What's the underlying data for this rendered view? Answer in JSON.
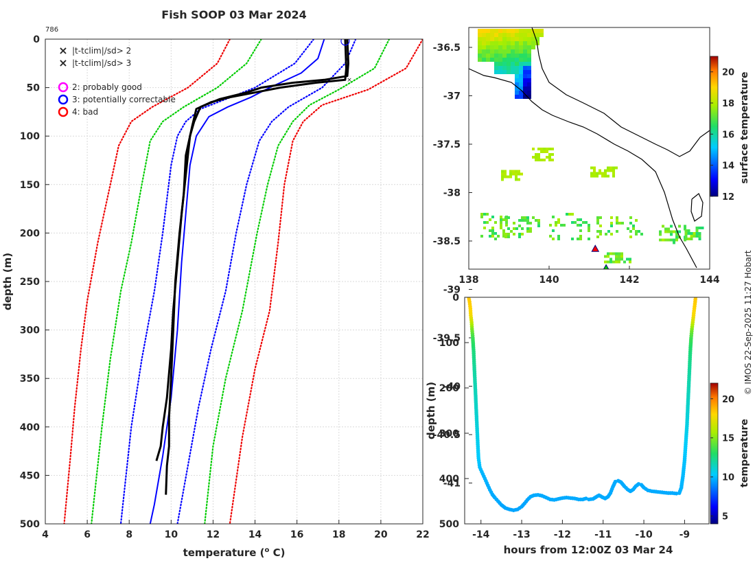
{
  "title": "Fish SOOP 03 Mar 2024",
  "cast_id": "786",
  "credit": "© IMOS 22-Sep-2025 11:27 Hobart",
  "colors": {
    "accent": "#0000ff",
    "red": "#ff0000",
    "green": "#00cc00",
    "magenta": "#ff00ff",
    "black": "#000000"
  },
  "chart_data": [
    {
      "type": "line",
      "name": "temperature profile",
      "xlabel_main": "temperature (",
      "xlabel_sup": "o",
      "xlabel_end": " C)",
      "ylabel": "depth (m)",
      "xlim": [
        4,
        22
      ],
      "ylim": [
        0,
        500
      ],
      "y_reversed": true,
      "xticks": [
        "4",
        "6",
        "8",
        "10",
        "12",
        "14",
        "16",
        "18",
        "20",
        "22"
      ],
      "yticks": [
        "0",
        "50",
        "100",
        "150",
        "200",
        "250",
        "300",
        "350",
        "400",
        "450",
        "500"
      ],
      "grid": true,
      "legend": {
        "placement": "top-left",
        "entries": [
          {
            "marker": "x",
            "color": "#00dd00",
            "label": "|t-tclim|/sd> 2"
          },
          {
            "marker": "x",
            "color": "#ee0000",
            "label": "|t-tclim|/sd> 3"
          },
          {
            "marker": "o",
            "color": "#ff00ff",
            "label": "2: probably good"
          },
          {
            "marker": "o",
            "color": "#0000ff",
            "label": "3: potentially correctable"
          },
          {
            "marker": "o",
            "color": "#ff0000",
            "label": "4: bad"
          }
        ]
      },
      "series": [
        {
          "name": "climatology mean",
          "style": "solid",
          "color": "#0000ff",
          "points": [
            [
              17.3,
              0
            ],
            [
              17.0,
              20
            ],
            [
              16.2,
              35
            ],
            [
              14.7,
              50
            ],
            [
              13.8,
              60
            ],
            [
              12.7,
              70
            ],
            [
              11.8,
              80
            ],
            [
              11.2,
              100
            ],
            [
              10.9,
              130
            ],
            [
              10.7,
              180
            ],
            [
              10.5,
              230
            ],
            [
              10.3,
              300
            ],
            [
              10.0,
              370
            ],
            [
              9.6,
              430
            ],
            [
              9.2,
              480
            ],
            [
              9.0,
              500
            ]
          ]
        },
        {
          "name": "-1 sd",
          "style": "dotted",
          "color": "#0000ff",
          "points": [
            [
              16.8,
              0
            ],
            [
              15.9,
              25
            ],
            [
              14.0,
              50
            ],
            [
              12.6,
              62
            ],
            [
              11.4,
              72
            ],
            [
              10.7,
              85
            ],
            [
              10.3,
              100
            ],
            [
              10.0,
              130
            ],
            [
              9.6,
              200
            ],
            [
              9.2,
              260
            ],
            [
              8.6,
              330
            ],
            [
              8.1,
              400
            ],
            [
              7.8,
              460
            ],
            [
              7.6,
              500
            ]
          ]
        },
        {
          "name": "+1 sd",
          "style": "dotted",
          "color": "#0000ff",
          "points": [
            [
              18.8,
              0
            ],
            [
              18.3,
              25
            ],
            [
              17.2,
              50
            ],
            [
              15.6,
              70
            ],
            [
              14.8,
              85
            ],
            [
              14.2,
              105
            ],
            [
              13.6,
              150
            ],
            [
              13.1,
              200
            ],
            [
              12.6,
              260
            ],
            [
              11.9,
              320
            ],
            [
              11.3,
              380
            ],
            [
              10.8,
              440
            ],
            [
              10.3,
              500
            ]
          ]
        },
        {
          "name": "-2 sd",
          "style": "dotted",
          "color": "#00cc00",
          "points": [
            [
              14.3,
              0
            ],
            [
              13.6,
              25
            ],
            [
              12.2,
              50
            ],
            [
              10.6,
              70
            ],
            [
              9.6,
              85
            ],
            [
              9.0,
              105
            ],
            [
              8.6,
              150
            ],
            [
              8.1,
              210
            ],
            [
              7.6,
              260
            ],
            [
              7.1,
              330
            ],
            [
              6.7,
              400
            ],
            [
              6.4,
              460
            ],
            [
              6.2,
              500
            ]
          ]
        },
        {
          "name": "+2 sd",
          "style": "dotted",
          "color": "#00cc00",
          "points": [
            [
              20.4,
              0
            ],
            [
              19.7,
              30
            ],
            [
              18.0,
              52
            ],
            [
              16.6,
              68
            ],
            [
              15.8,
              85
            ],
            [
              15.1,
              110
            ],
            [
              14.6,
              150
            ],
            [
              14.1,
              200
            ],
            [
              13.4,
              280
            ],
            [
              12.6,
              350
            ],
            [
              12.0,
              420
            ],
            [
              11.6,
              500
            ]
          ]
        },
        {
          "name": "-3 sd",
          "style": "dotted",
          "color": "#ee0000",
          "points": [
            [
              12.8,
              0
            ],
            [
              12.2,
              25
            ],
            [
              10.8,
              50
            ],
            [
              9.1,
              70
            ],
            [
              8.1,
              85
            ],
            [
              7.5,
              110
            ],
            [
              7.0,
              160
            ],
            [
              6.5,
              210
            ],
            [
              6.0,
              270
            ],
            [
              5.7,
              320
            ],
            [
              5.4,
              380
            ],
            [
              5.2,
              430
            ],
            [
              4.9,
              500
            ]
          ]
        },
        {
          "name": "+3 sd",
          "style": "dotted",
          "color": "#ee0000",
          "points": [
            [
              22.0,
              0
            ],
            [
              21.2,
              30
            ],
            [
              19.4,
              52
            ],
            [
              17.2,
              68
            ],
            [
              16.3,
              85
            ],
            [
              15.8,
              105
            ],
            [
              15.4,
              150
            ],
            [
              15.1,
              210
            ],
            [
              14.7,
              280
            ],
            [
              14.0,
              340
            ],
            [
              13.4,
              410
            ],
            [
              12.8,
              500
            ]
          ]
        },
        {
          "name": "cast 1",
          "style": "solid",
          "color": "#000000",
          "points": [
            [
              18.4,
              0
            ],
            [
              18.45,
              25
            ],
            [
              18.4,
              38
            ],
            [
              17.3,
              42
            ],
            [
              15.8,
              45
            ],
            [
              14.3,
              50
            ],
            [
              13.6,
              55
            ],
            [
              12.3,
              62
            ],
            [
              11.4,
              70
            ],
            [
              11.1,
              85
            ],
            [
              10.9,
              100
            ],
            [
              10.7,
              140
            ],
            [
              10.5,
              180
            ],
            [
              10.3,
              230
            ],
            [
              10.1,
              280
            ],
            [
              10.0,
              320
            ],
            [
              9.8,
              370
            ],
            [
              9.6,
              400
            ],
            [
              9.5,
              420
            ],
            [
              9.3,
              435
            ]
          ]
        },
        {
          "name": "cast 2",
          "style": "solid",
          "color": "#000000",
          "points": [
            [
              18.3,
              0
            ],
            [
              18.35,
              30
            ],
            [
              18.3,
              42
            ],
            [
              16.9,
              45
            ],
            [
              15.2,
              50
            ],
            [
              14.0,
              55
            ],
            [
              12.8,
              60
            ],
            [
              11.9,
              65
            ],
            [
              11.2,
              72
            ],
            [
              11.0,
              90
            ],
            [
              10.7,
              120
            ],
            [
              10.6,
              160
            ],
            [
              10.4,
              200
            ],
            [
              10.2,
              250
            ],
            [
              10.1,
              300
            ],
            [
              10.0,
              350
            ],
            [
              9.9,
              390
            ],
            [
              9.9,
              420
            ],
            [
              9.8,
              440
            ],
            [
              9.75,
              470
            ]
          ]
        }
      ],
      "qc_marker": {
        "x": 18.3,
        "y": 2,
        "label": "3: potentially correctable"
      }
    },
    {
      "type": "heatmap",
      "name": "surface temperature map",
      "xlim": [
        138,
        144.3
      ],
      "ylim": [
        -41.1,
        -36.1
      ],
      "xticks": [
        "138",
        "140",
        "142",
        "144"
      ],
      "yticks": [
        "-36.5",
        "-37",
        "-37.5",
        "-38",
        "-38.5",
        "-39",
        "-39.5",
        "-40",
        "-40.5",
        "-41"
      ],
      "colorbar": {
        "label": "surface temperature",
        "range": [
          12,
          21
        ],
        "ticks": [
          "12",
          "14",
          "16",
          "18",
          "20"
        ]
      },
      "markers": [
        {
          "lon": 141.15,
          "lat": -38.58,
          "shape": "triangle",
          "color": "#ff0000"
        },
        {
          "lon": 141.42,
          "lat": -38.78,
          "shape": "triangle",
          "color": "#00cc00"
        }
      ]
    },
    {
      "type": "scatter",
      "name": "depth vs time",
      "xlabel": "hours from 12:00Z 03 Mar 24",
      "ylabel": "depth (m)",
      "xlim": [
        -14.4,
        -8.4
      ],
      "ylim": [
        0,
        500
      ],
      "y_reversed": true,
      "xticks": [
        "-14",
        "-13",
        "-12",
        "-11",
        "-10",
        "-9"
      ],
      "yticks": [
        "0",
        "100",
        "200",
        "300",
        "400",
        "500"
      ],
      "colorbar": {
        "label": "temperature",
        "range": [
          4,
          22
        ],
        "ticks": [
          "5",
          "10",
          "15",
          "20"
        ]
      },
      "points": [
        [
          -14.3,
          0,
          18.4
        ],
        [
          -14.28,
          10,
          18.3
        ],
        [
          -14.26,
          25,
          18.1
        ],
        [
          -14.25,
          40,
          17.8
        ],
        [
          -14.23,
          55,
          16.5
        ],
        [
          -14.22,
          70,
          14.8
        ],
        [
          -14.2,
          90,
          13.5
        ],
        [
          -14.18,
          120,
          12.6
        ],
        [
          -14.16,
          160,
          12.0
        ],
        [
          -14.14,
          200,
          11.6
        ],
        [
          -14.12,
          240,
          11.3
        ],
        [
          -14.1,
          280,
          11.0
        ],
        [
          -14.08,
          320,
          10.6
        ],
        [
          -14.06,
          355,
          10.3
        ],
        [
          -14.03,
          375,
          10.0
        ],
        [
          -13.98,
          385,
          9.9
        ],
        [
          -13.93,
          395,
          9.8
        ],
        [
          -13.88,
          405,
          9.8
        ],
        [
          -13.83,
          415,
          9.7
        ],
        [
          -13.78,
          425,
          9.7
        ],
        [
          -13.72,
          435,
          9.6
        ],
        [
          -13.66,
          442,
          9.6
        ],
        [
          -13.58,
          450,
          9.6
        ],
        [
          -13.5,
          458,
          9.5
        ],
        [
          -13.4,
          465,
          9.5
        ],
        [
          -13.3,
          468,
          9.5
        ],
        [
          -13.2,
          470,
          9.5
        ],
        [
          -13.1,
          468,
          9.5
        ],
        [
          -13.0,
          462,
          9.5
        ],
        [
          -12.93,
          455,
          9.5
        ],
        [
          -12.86,
          447,
          9.5
        ],
        [
          -12.78,
          440,
          9.6
        ],
        [
          -12.7,
          437,
          9.6
        ],
        [
          -12.6,
          436,
          9.6
        ],
        [
          -12.5,
          438,
          9.6
        ],
        [
          -12.4,
          442,
          9.6
        ],
        [
          -12.3,
          446,
          9.6
        ],
        [
          -12.2,
          447,
          9.6
        ],
        [
          -12.1,
          445,
          9.6
        ],
        [
          -12.0,
          443,
          9.6
        ],
        [
          -11.9,
          442,
          9.6
        ],
        [
          -11.8,
          443,
          9.6
        ],
        [
          -11.7,
          444,
          9.6
        ],
        [
          -11.6,
          446,
          9.6
        ],
        [
          -11.5,
          446,
          9.6
        ],
        [
          -11.42,
          444,
          9.6
        ],
        [
          -11.35,
          446,
          9.6
        ],
        [
          -11.25,
          445,
          9.6
        ],
        [
          -11.18,
          441,
          9.6
        ],
        [
          -11.1,
          437,
          9.6
        ],
        [
          -11.02,
          441,
          9.6
        ],
        [
          -10.95,
          444,
          9.6
        ],
        [
          -10.88,
          440,
          9.6
        ],
        [
          -10.82,
          432,
          9.6
        ],
        [
          -10.76,
          418,
          9.6
        ],
        [
          -10.7,
          407,
          9.6
        ],
        [
          -10.63,
          405,
          9.6
        ],
        [
          -10.56,
          408,
          9.6
        ],
        [
          -10.48,
          417,
          9.6
        ],
        [
          -10.4,
          424,
          9.6
        ],
        [
          -10.33,
          428,
          9.6
        ],
        [
          -10.26,
          424,
          9.6
        ],
        [
          -10.2,
          417,
          9.6
        ],
        [
          -10.13,
          412,
          9.6
        ],
        [
          -10.06,
          414,
          9.6
        ],
        [
          -10.0,
          420,
          9.6
        ],
        [
          -9.9,
          426,
          9.6
        ],
        [
          -9.8,
          428,
          9.6
        ],
        [
          -9.7,
          429,
          9.6
        ],
        [
          -9.6,
          430,
          9.6
        ],
        [
          -9.5,
          431,
          9.6
        ],
        [
          -9.4,
          432,
          9.6
        ],
        [
          -9.3,
          432,
          9.6
        ],
        [
          -9.2,
          433,
          9.6
        ],
        [
          -9.13,
          432,
          9.7
        ],
        [
          -9.08,
          420,
          9.8
        ],
        [
          -9.04,
          395,
          9.9
        ],
        [
          -9.0,
          360,
          10.1
        ],
        [
          -8.97,
          320,
          10.4
        ],
        [
          -8.94,
          280,
          10.8
        ],
        [
          -8.92,
          240,
          11.2
        ],
        [
          -8.9,
          200,
          11.6
        ],
        [
          -8.88,
          160,
          12.0
        ],
        [
          -8.86,
          120,
          12.6
        ],
        [
          -8.84,
          90,
          13.5
        ],
        [
          -8.82,
          70,
          14.8
        ],
        [
          -8.8,
          55,
          16.5
        ],
        [
          -8.78,
          40,
          17.8
        ],
        [
          -8.76,
          25,
          18.1
        ],
        [
          -8.74,
          10,
          18.3
        ],
        [
          -8.73,
          0,
          18.4
        ]
      ]
    }
  ]
}
